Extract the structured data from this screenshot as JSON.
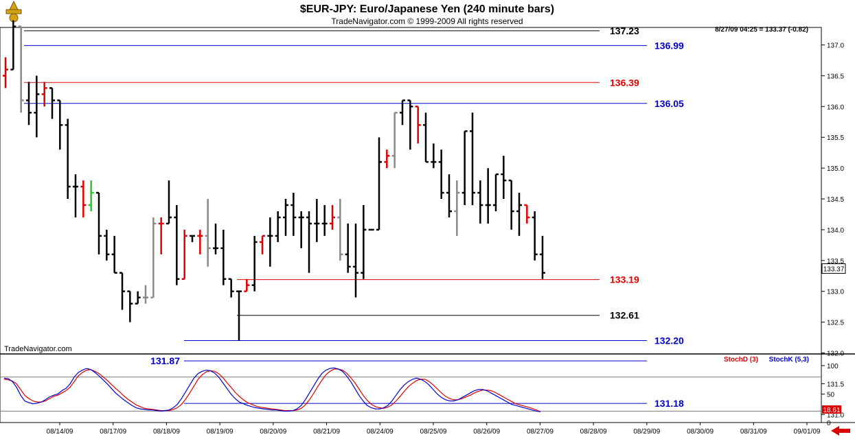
{
  "header": {
    "title": "$EUR-JPY:  Euro/Japanese Yen  (240 minute bars)",
    "copyright": "TradeNavigator.com © 1999-2009 All rights reserved",
    "quote": "8/27/09 04:25 = 133.37 (-0.82)"
  },
  "watermark": "TradeNavigator.com",
  "price_axis": {
    "ticks": [
      "137.0",
      "136.5",
      "136.0",
      "135.5",
      "135.0",
      "134.5",
      "134.0",
      "133.5",
      "133.0",
      "132.5",
      "132.0",
      "131.5",
      "131.0"
    ],
    "last_price": "133.37"
  },
  "date_axis": {
    "labels": [
      "08/14/09",
      "08/17/09",
      "08/18/09",
      "08/19/09",
      "08/20/09",
      "08/21/09",
      "08/24/09",
      "08/25/09",
      "08/26/09",
      "08/27/09",
      "08/28/09",
      "08/29/09",
      "08/30/09",
      "08/31/09",
      "09/01/09"
    ]
  },
  "levels": [
    {
      "label": "137.23",
      "value": 137.23,
      "color": "#000000"
    },
    {
      "label": "136.99",
      "value": 136.99,
      "color": "#0000cc"
    },
    {
      "label": "136.39",
      "value": 136.39,
      "color": "#dd0000"
    },
    {
      "label": "136.05",
      "value": 136.05,
      "color": "#0000cc"
    },
    {
      "label": "133.19",
      "value": 133.19,
      "color": "#dd0000"
    },
    {
      "label": "132.61",
      "value": 132.61,
      "color": "#000000"
    },
    {
      "label": "132.20",
      "value": 132.2,
      "color": "#0000cc"
    },
    {
      "label": "131.87",
      "value": 131.87,
      "color": "#0000cc"
    },
    {
      "label": "131.18",
      "value": 131.18,
      "color": "#0000cc"
    }
  ],
  "stoch": {
    "legend_d": "StochD (3)",
    "legend_k": "StochK (5,3)",
    "ticks": [
      "100",
      "50",
      "0"
    ],
    "last_value": "18.61",
    "d_color": "#dd0000",
    "k_color": "#0000cc"
  },
  "chart_data": {
    "type": "ohlc",
    "bars": [
      {
        "o": 136.5,
        "h": 136.8,
        "l": 136.3,
        "c": 136.6,
        "col": "r"
      },
      {
        "o": 136.6,
        "h": 137.4,
        "l": 136.6,
        "c": 137.3,
        "col": "k"
      },
      {
        "o": 137.3,
        "h": 137.3,
        "l": 135.9,
        "c": 136.1,
        "col": "g"
      },
      {
        "o": 136.1,
        "h": 136.4,
        "l": 135.7,
        "c": 135.9,
        "col": "k"
      },
      {
        "o": 135.9,
        "h": 136.5,
        "l": 135.5,
        "c": 136.2,
        "col": "k"
      },
      {
        "o": 136.2,
        "h": 136.4,
        "l": 136.0,
        "c": 136.3,
        "col": "r"
      },
      {
        "o": 136.3,
        "h": 136.3,
        "l": 135.8,
        "c": 136.1,
        "col": "k"
      },
      {
        "o": 136.1,
        "h": 136.1,
        "l": 135.3,
        "c": 135.7,
        "col": "k"
      },
      {
        "o": 135.7,
        "h": 135.8,
        "l": 134.5,
        "c": 134.7,
        "col": "k"
      },
      {
        "o": 134.7,
        "h": 134.9,
        "l": 134.2,
        "c": 134.7,
        "col": "k"
      },
      {
        "o": 134.7,
        "h": 134.8,
        "l": 134.2,
        "c": 134.4,
        "col": "r"
      },
      {
        "o": 134.4,
        "h": 134.8,
        "l": 134.3,
        "c": 134.6,
        "col": "gr"
      },
      {
        "o": 134.6,
        "h": 134.6,
        "l": 133.6,
        "c": 133.9,
        "col": "k"
      },
      {
        "o": 133.9,
        "h": 134.0,
        "l": 133.5,
        "c": 133.6,
        "col": "k"
      },
      {
        "o": 133.6,
        "h": 133.9,
        "l": 133.3,
        "c": 133.3,
        "col": "k"
      },
      {
        "o": 133.3,
        "h": 133.3,
        "l": 132.7,
        "c": 133.0,
        "col": "k"
      },
      {
        "o": 133.0,
        "h": 133.0,
        "l": 132.5,
        "c": 132.8,
        "col": "k"
      },
      {
        "o": 132.8,
        "h": 133.0,
        "l": 132.8,
        "c": 132.9,
        "col": "k"
      },
      {
        "o": 132.9,
        "h": 133.1,
        "l": 132.8,
        "c": 132.9,
        "col": "g"
      },
      {
        "o": 132.9,
        "h": 134.2,
        "l": 132.9,
        "c": 134.1,
        "col": "g"
      },
      {
        "o": 134.1,
        "h": 134.2,
        "l": 133.6,
        "c": 134.1,
        "col": "r"
      },
      {
        "o": 134.1,
        "h": 134.8,
        "l": 134.1,
        "c": 134.2,
        "col": "k"
      },
      {
        "o": 134.2,
        "h": 134.4,
        "l": 133.1,
        "c": 133.2,
        "col": "k"
      },
      {
        "o": 133.2,
        "h": 134.0,
        "l": 133.2,
        "c": 133.9,
        "col": "r"
      },
      {
        "o": 133.9,
        "h": 133.9,
        "l": 133.8,
        "c": 133.9,
        "col": "k"
      },
      {
        "o": 133.9,
        "h": 134.0,
        "l": 133.6,
        "c": 133.9,
        "col": "r"
      },
      {
        "o": 133.9,
        "h": 134.5,
        "l": 133.4,
        "c": 133.7,
        "col": "g"
      },
      {
        "o": 133.7,
        "h": 134.1,
        "l": 133.6,
        "c": 133.7,
        "col": "k"
      },
      {
        "o": 133.7,
        "h": 134.0,
        "l": 133.1,
        "c": 133.2,
        "col": "k"
      },
      {
        "o": 133.2,
        "h": 133.2,
        "l": 132.9,
        "c": 133.0,
        "col": "k"
      },
      {
        "o": 133.0,
        "h": 133.0,
        "l": 132.2,
        "c": 133.0,
        "col": "k"
      },
      {
        "o": 133.0,
        "h": 133.2,
        "l": 133.0,
        "c": 133.1,
        "col": "r"
      },
      {
        "o": 133.1,
        "h": 133.9,
        "l": 133.0,
        "c": 133.8,
        "col": "k"
      },
      {
        "o": 133.8,
        "h": 133.9,
        "l": 133.6,
        "c": 133.9,
        "col": "r"
      },
      {
        "o": 133.9,
        "h": 134.2,
        "l": 133.4,
        "c": 133.9,
        "col": "k"
      },
      {
        "o": 133.9,
        "h": 134.3,
        "l": 133.8,
        "c": 134.2,
        "col": "k"
      },
      {
        "o": 134.2,
        "h": 134.5,
        "l": 133.9,
        "c": 134.4,
        "col": "k"
      },
      {
        "o": 134.4,
        "h": 134.6,
        "l": 133.9,
        "c": 134.2,
        "col": "k"
      },
      {
        "o": 134.2,
        "h": 134.3,
        "l": 133.7,
        "c": 134.2,
        "col": "k"
      },
      {
        "o": 134.2,
        "h": 134.3,
        "l": 133.3,
        "c": 134.1,
        "col": "k"
      },
      {
        "o": 134.1,
        "h": 134.5,
        "l": 133.8,
        "c": 134.1,
        "col": "k"
      },
      {
        "o": 134.1,
        "h": 134.4,
        "l": 133.9,
        "c": 134.1,
        "col": "k"
      },
      {
        "o": 134.1,
        "h": 134.4,
        "l": 134.0,
        "c": 134.2,
        "col": "r"
      },
      {
        "o": 134.2,
        "h": 134.5,
        "l": 133.5,
        "c": 133.6,
        "col": "g"
      },
      {
        "o": 133.6,
        "h": 134.1,
        "l": 133.3,
        "c": 133.4,
        "col": "k"
      },
      {
        "o": 133.4,
        "h": 134.1,
        "l": 132.9,
        "c": 133.3,
        "col": "k"
      },
      {
        "o": 133.3,
        "h": 134.4,
        "l": 133.2,
        "c": 134.0,
        "col": "k"
      },
      {
        "o": 134.0,
        "h": 134.0,
        "l": 134.0,
        "c": 134.0,
        "col": "k"
      },
      {
        "o": 134.0,
        "h": 135.5,
        "l": 134.0,
        "c": 135.1,
        "col": "k"
      },
      {
        "o": 135.1,
        "h": 135.3,
        "l": 135.0,
        "c": 135.2,
        "col": "r"
      },
      {
        "o": 135.2,
        "h": 135.9,
        "l": 135.0,
        "c": 135.9,
        "col": "g"
      },
      {
        "o": 135.9,
        "h": 136.1,
        "l": 135.7,
        "c": 136.1,
        "col": "k"
      },
      {
        "o": 136.1,
        "h": 136.1,
        "l": 135.3,
        "c": 136.0,
        "col": "k"
      },
      {
        "o": 136.0,
        "h": 136.0,
        "l": 135.4,
        "c": 135.7,
        "col": "r"
      },
      {
        "o": 135.7,
        "h": 135.9,
        "l": 135.1,
        "c": 135.1,
        "col": "k"
      },
      {
        "o": 135.1,
        "h": 135.4,
        "l": 135.0,
        "c": 135.1,
        "col": "k"
      },
      {
        "o": 135.1,
        "h": 135.3,
        "l": 134.5,
        "c": 134.6,
        "col": "k"
      },
      {
        "o": 134.6,
        "h": 134.9,
        "l": 134.2,
        "c": 134.3,
        "col": "k"
      },
      {
        "o": 134.3,
        "h": 134.8,
        "l": 133.9,
        "c": 134.6,
        "col": "g"
      },
      {
        "o": 134.6,
        "h": 135.6,
        "l": 134.4,
        "c": 135.6,
        "col": "k"
      },
      {
        "o": 135.6,
        "h": 135.9,
        "l": 134.4,
        "c": 134.6,
        "col": "k"
      },
      {
        "o": 134.6,
        "h": 134.8,
        "l": 134.1,
        "c": 134.4,
        "col": "k"
      },
      {
        "o": 134.4,
        "h": 135.0,
        "l": 134.1,
        "c": 134.4,
        "col": "k"
      },
      {
        "o": 134.4,
        "h": 134.9,
        "l": 134.3,
        "c": 134.9,
        "col": "k"
      },
      {
        "o": 134.9,
        "h": 135.2,
        "l": 134.5,
        "c": 134.8,
        "col": "k"
      },
      {
        "o": 134.8,
        "h": 134.8,
        "l": 134.0,
        "c": 134.3,
        "col": "k"
      },
      {
        "o": 134.3,
        "h": 134.6,
        "l": 133.9,
        "c": 134.4,
        "col": "k"
      },
      {
        "o": 134.4,
        "h": 134.4,
        "l": 134.1,
        "c": 134.2,
        "col": "r"
      },
      {
        "o": 134.2,
        "h": 134.3,
        "l": 133.5,
        "c": 133.6,
        "col": "k"
      },
      {
        "o": 133.6,
        "h": 133.9,
        "l": 133.2,
        "c": 133.3,
        "col": "k"
      }
    ],
    "stoch_k": [
      78,
      77,
      72,
      62,
      48,
      38,
      35,
      33,
      34,
      36,
      40,
      45,
      48,
      50,
      56,
      60,
      68,
      80,
      88,
      92,
      95,
      93,
      88,
      82,
      75,
      68,
      60,
      52,
      46,
      40,
      35,
      30,
      26,
      24,
      23,
      22,
      22,
      21,
      20,
      21,
      22,
      26,
      32,
      42,
      54,
      66,
      78,
      86,
      90,
      92,
      91,
      87,
      80,
      70,
      60,
      50,
      42,
      36,
      33,
      30,
      28,
      26,
      25,
      24,
      23,
      22,
      22,
      21,
      20,
      20,
      21,
      24,
      30,
      40,
      52,
      64,
      76,
      86,
      92,
      95,
      96,
      94,
      90,
      82,
      72,
      60,
      48,
      38,
      30,
      26,
      24,
      24,
      26,
      30,
      38,
      48,
      58,
      66,
      72,
      76,
      78,
      76,
      72,
      66,
      58,
      50,
      44,
      40,
      38,
      38,
      40,
      44,
      48,
      52,
      56,
      58,
      58,
      56,
      52,
      48,
      44,
      40,
      36,
      32,
      30,
      28,
      26,
      24,
      22,
      20,
      19
    ],
    "stoch_d": [
      76,
      75,
      73,
      68,
      58,
      48,
      42,
      38,
      36,
      36,
      38,
      42,
      46,
      48,
      52,
      56,
      62,
      72,
      82,
      88,
      92,
      93,
      90,
      86,
      80,
      74,
      67,
      60,
      54,
      47,
      41,
      36,
      31,
      28,
      25,
      24,
      23,
      22,
      21,
      21,
      21,
      23,
      26,
      32,
      41,
      52,
      64,
      76,
      84,
      89,
      91,
      90,
      86,
      79,
      70,
      62,
      53,
      46,
      40,
      35,
      32,
      29,
      27,
      26,
      25,
      24,
      23,
      22,
      21,
      21,
      21,
      22,
      25,
      31,
      40,
      51,
      63,
      74,
      84,
      90,
      94,
      94,
      92,
      87,
      79,
      70,
      59,
      48,
      39,
      32,
      28,
      26,
      25,
      27,
      31,
      38,
      46,
      55,
      63,
      69,
      74,
      76,
      76,
      72,
      66,
      59,
      52,
      46,
      42,
      40,
      40,
      42,
      45,
      48,
      52,
      55,
      57,
      57,
      56,
      53,
      49,
      45,
      41,
      37,
      33,
      31,
      29,
      27,
      25,
      22,
      19
    ]
  }
}
